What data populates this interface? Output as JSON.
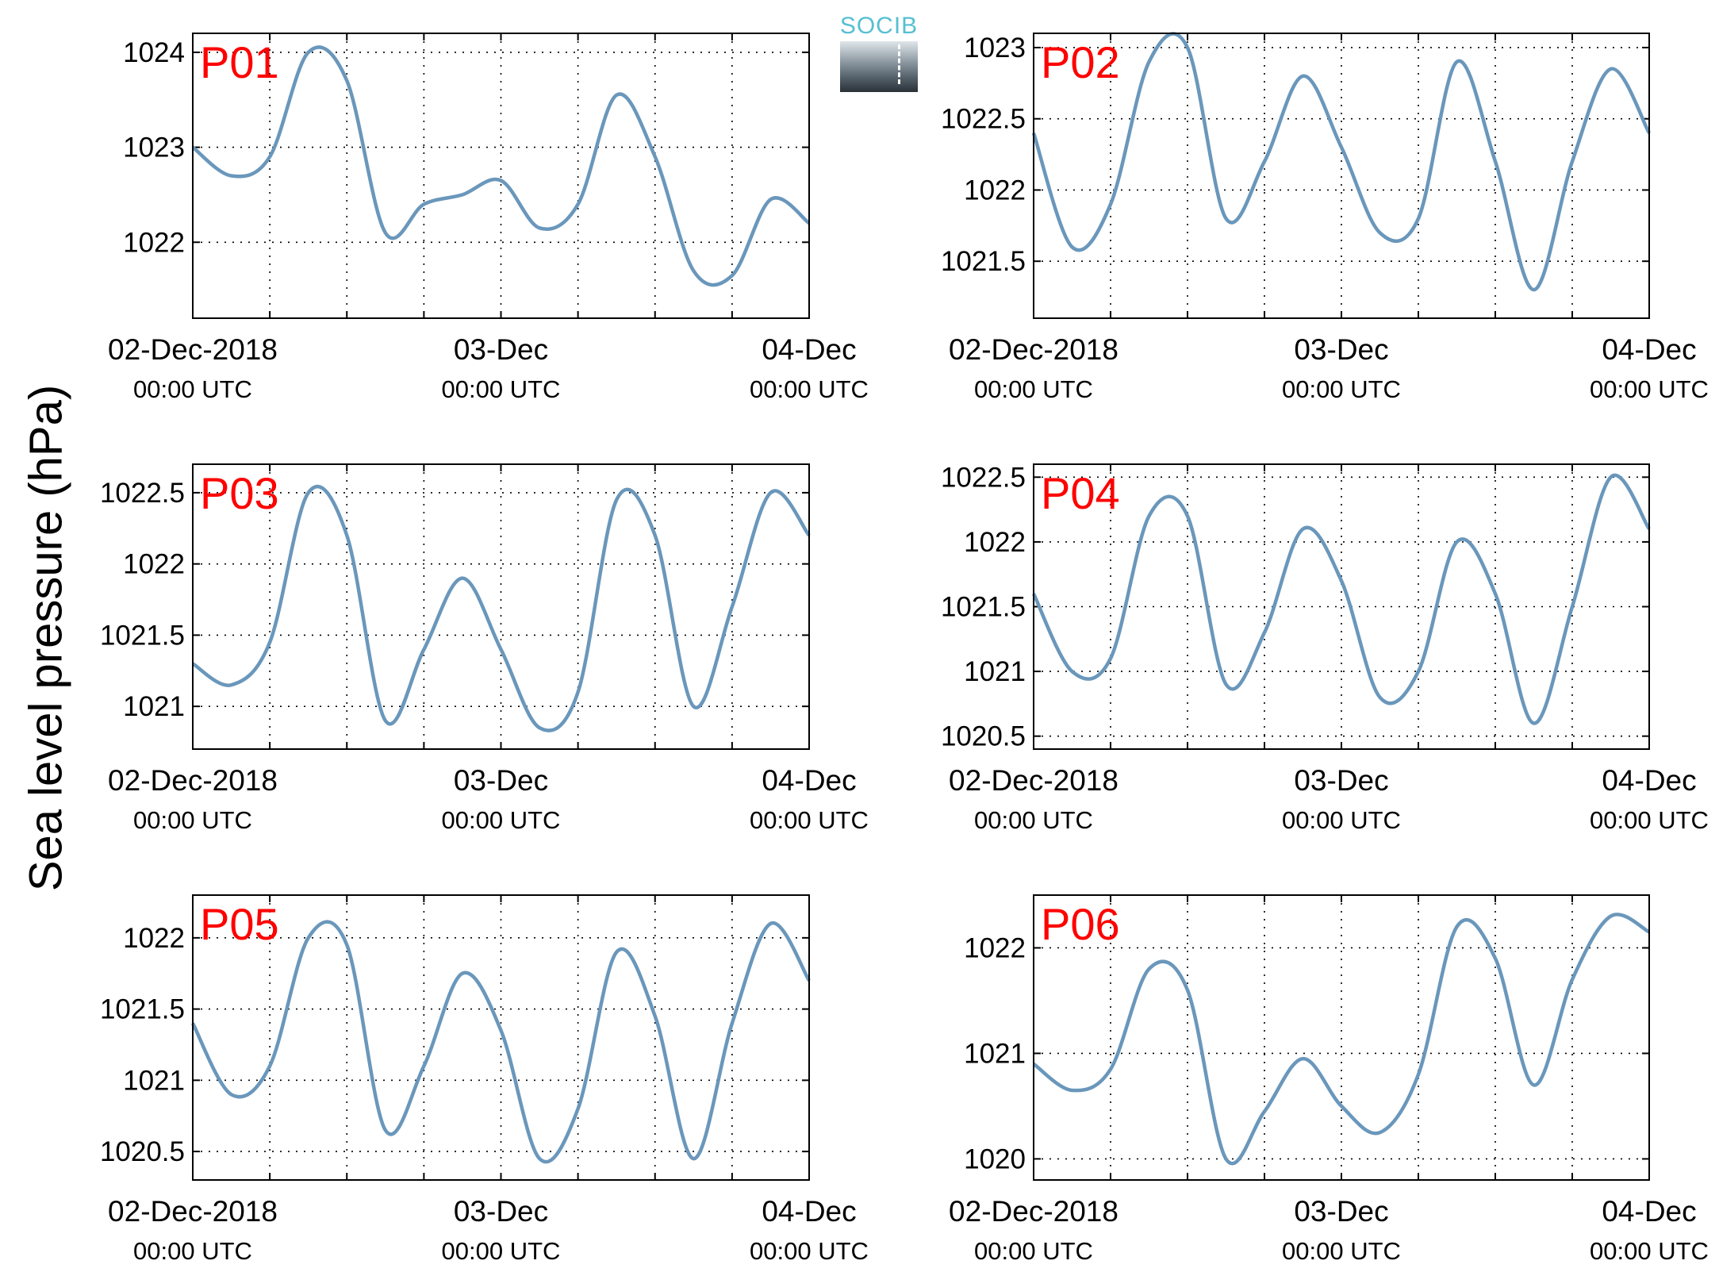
{
  "y_axis_label": "Sea level pressure (hPa)",
  "logo_text": "SOCIB",
  "chart_data": [
    {
      "type": "line",
      "label": "P01",
      "x": [
        "02-Dec-2018 00:00 UTC",
        "02-Dec-2018 03:00 UTC",
        "02-Dec-2018 06:00 UTC",
        "02-Dec-2018 09:00 UTC",
        "02-Dec-2018 12:00 UTC",
        "02-Dec-2018 15:00 UTC",
        "02-Dec-2018 18:00 UTC",
        "02-Dec-2018 21:00 UTC",
        "03-Dec-2018 00:00 UTC",
        "03-Dec-2018 03:00 UTC",
        "03-Dec-2018 06:00 UTC",
        "03-Dec-2018 09:00 UTC",
        "03-Dec-2018 12:00 UTC",
        "03-Dec-2018 15:00 UTC",
        "03-Dec-2018 18:00 UTC",
        "03-Dec-2018 21:00 UTC",
        "04-Dec-2018 00:00 UTC"
      ],
      "y": [
        1023.0,
        1022.7,
        1022.9,
        1024.0,
        1023.7,
        1022.1,
        1022.4,
        1022.5,
        1022.65,
        1022.15,
        1022.4,
        1023.55,
        1022.9,
        1021.7,
        1021.65,
        1022.45,
        1022.2
      ],
      "xlim": [
        "02-Dec-2018 00:00 UTC",
        "04-Dec-2018 00:00 UTC"
      ],
      "ylim": [
        1021.2,
        1024.2
      ],
      "yticks": [
        1022,
        1023,
        1024
      ],
      "xtick_labels": [
        {
          "date": "02-Dec-2018",
          "time": "00:00 UTC"
        },
        {
          "date": "03-Dec",
          "time": "00:00 UTC"
        },
        {
          "date": "04-Dec",
          "time": "00:00 UTC"
        }
      ],
      "grid": true,
      "color": "#6a97bb"
    },
    {
      "type": "line",
      "label": "P02",
      "x": [
        "02-Dec-2018 00:00 UTC",
        "02-Dec-2018 03:00 UTC",
        "02-Dec-2018 06:00 UTC",
        "02-Dec-2018 09:00 UTC",
        "02-Dec-2018 12:00 UTC",
        "02-Dec-2018 15:00 UTC",
        "02-Dec-2018 18:00 UTC",
        "02-Dec-2018 21:00 UTC",
        "03-Dec-2018 00:00 UTC",
        "03-Dec-2018 03:00 UTC",
        "03-Dec-2018 06:00 UTC",
        "03-Dec-2018 09:00 UTC",
        "03-Dec-2018 12:00 UTC",
        "03-Dec-2018 15:00 UTC",
        "03-Dec-2018 18:00 UTC",
        "03-Dec-2018 21:00 UTC",
        "04-Dec-2018 00:00 UTC"
      ],
      "y": [
        1022.4,
        1021.6,
        1021.9,
        1022.9,
        1023.0,
        1021.8,
        1022.2,
        1022.8,
        1022.3,
        1021.7,
        1021.8,
        1022.9,
        1022.2,
        1021.3,
        1022.2,
        1022.85,
        1022.4
      ],
      "xlim": [
        "02-Dec-2018 00:00 UTC",
        "04-Dec-2018 00:00 UTC"
      ],
      "ylim": [
        1021.1,
        1023.1
      ],
      "yticks": [
        1021.5,
        1022,
        1022.5,
        1023
      ],
      "xtick_labels": [
        {
          "date": "02-Dec-2018",
          "time": "00:00 UTC"
        },
        {
          "date": "03-Dec",
          "time": "00:00 UTC"
        },
        {
          "date": "04-Dec",
          "time": "00:00 UTC"
        }
      ],
      "grid": true,
      "color": "#6a97bb"
    },
    {
      "type": "line",
      "label": "P03",
      "x": [
        "02-Dec-2018 00:00 UTC",
        "02-Dec-2018 03:00 UTC",
        "02-Dec-2018 06:00 UTC",
        "02-Dec-2018 09:00 UTC",
        "02-Dec-2018 12:00 UTC",
        "02-Dec-2018 15:00 UTC",
        "02-Dec-2018 18:00 UTC",
        "02-Dec-2018 21:00 UTC",
        "03-Dec-2018 00:00 UTC",
        "03-Dec-2018 03:00 UTC",
        "03-Dec-2018 06:00 UTC",
        "03-Dec-2018 09:00 UTC",
        "03-Dec-2018 12:00 UTC",
        "03-Dec-2018 15:00 UTC",
        "03-Dec-2018 18:00 UTC",
        "03-Dec-2018 21:00 UTC",
        "04-Dec-2018 00:00 UTC"
      ],
      "y": [
        1021.3,
        1021.15,
        1021.45,
        1022.5,
        1022.2,
        1020.9,
        1021.4,
        1021.9,
        1021.4,
        1020.85,
        1021.1,
        1022.45,
        1022.2,
        1021.0,
        1021.7,
        1022.5,
        1022.2
      ],
      "xlim": [
        "02-Dec-2018 00:00 UTC",
        "04-Dec-2018 00:00 UTC"
      ],
      "ylim": [
        1020.7,
        1022.7
      ],
      "yticks": [
        1021,
        1021.5,
        1022,
        1022.5
      ],
      "xtick_labels": [
        {
          "date": "02-Dec-2018",
          "time": "00:00 UTC"
        },
        {
          "date": "03-Dec",
          "time": "00:00 UTC"
        },
        {
          "date": "04-Dec",
          "time": "00:00 UTC"
        }
      ],
      "grid": true,
      "color": "#6a97bb"
    },
    {
      "type": "line",
      "label": "P04",
      "x": [
        "02-Dec-2018 00:00 UTC",
        "02-Dec-2018 03:00 UTC",
        "02-Dec-2018 06:00 UTC",
        "02-Dec-2018 09:00 UTC",
        "02-Dec-2018 12:00 UTC",
        "02-Dec-2018 15:00 UTC",
        "02-Dec-2018 18:00 UTC",
        "02-Dec-2018 21:00 UTC",
        "03-Dec-2018 00:00 UTC",
        "03-Dec-2018 03:00 UTC",
        "03-Dec-2018 06:00 UTC",
        "03-Dec-2018 09:00 UTC",
        "03-Dec-2018 12:00 UTC",
        "03-Dec-2018 15:00 UTC",
        "03-Dec-2018 18:00 UTC",
        "03-Dec-2018 21:00 UTC",
        "04-Dec-2018 00:00 UTC"
      ],
      "y": [
        1021.6,
        1021.0,
        1021.1,
        1022.2,
        1022.2,
        1020.9,
        1021.3,
        1022.1,
        1021.7,
        1020.8,
        1021.0,
        1022.0,
        1021.6,
        1020.6,
        1021.5,
        1022.5,
        1022.1
      ],
      "xlim": [
        "02-Dec-2018 00:00 UTC",
        "04-Dec-2018 00:00 UTC"
      ],
      "ylim": [
        1020.4,
        1022.6
      ],
      "yticks": [
        1020.5,
        1021,
        1021.5,
        1022,
        1022.5
      ],
      "xtick_labels": [
        {
          "date": "02-Dec-2018",
          "time": "00:00 UTC"
        },
        {
          "date": "03-Dec",
          "time": "00:00 UTC"
        },
        {
          "date": "04-Dec",
          "time": "00:00 UTC"
        }
      ],
      "grid": true,
      "color": "#6a97bb"
    },
    {
      "type": "line",
      "label": "P05",
      "x": [
        "02-Dec-2018 00:00 UTC",
        "02-Dec-2018 03:00 UTC",
        "02-Dec-2018 06:00 UTC",
        "02-Dec-2018 09:00 UTC",
        "02-Dec-2018 12:00 UTC",
        "02-Dec-2018 15:00 UTC",
        "02-Dec-2018 18:00 UTC",
        "02-Dec-2018 21:00 UTC",
        "03-Dec-2018 00:00 UTC",
        "03-Dec-2018 03:00 UTC",
        "03-Dec-2018 06:00 UTC",
        "03-Dec-2018 09:00 UTC",
        "03-Dec-2018 12:00 UTC",
        "03-Dec-2018 15:00 UTC",
        "03-Dec-2018 18:00 UTC",
        "03-Dec-2018 21:00 UTC",
        "04-Dec-2018 00:00 UTC"
      ],
      "y": [
        1021.4,
        1020.9,
        1021.1,
        1022.0,
        1021.95,
        1020.65,
        1021.1,
        1021.75,
        1021.35,
        1020.45,
        1020.8,
        1021.9,
        1021.45,
        1020.45,
        1021.4,
        1022.1,
        1021.7
      ],
      "xlim": [
        "02-Dec-2018 00:00 UTC",
        "04-Dec-2018 00:00 UTC"
      ],
      "ylim": [
        1020.3,
        1022.3
      ],
      "yticks": [
        1020.5,
        1021,
        1021.5,
        1022
      ],
      "xtick_labels": [
        {
          "date": "02-Dec-2018",
          "time": "00:00 UTC"
        },
        {
          "date": "03-Dec",
          "time": "00:00 UTC"
        },
        {
          "date": "04-Dec",
          "time": "00:00 UTC"
        }
      ],
      "grid": true,
      "color": "#6a97bb"
    },
    {
      "type": "line",
      "label": "P06",
      "x": [
        "02-Dec-2018 00:00 UTC",
        "02-Dec-2018 03:00 UTC",
        "02-Dec-2018 06:00 UTC",
        "02-Dec-2018 09:00 UTC",
        "02-Dec-2018 12:00 UTC",
        "02-Dec-2018 15:00 UTC",
        "02-Dec-2018 18:00 UTC",
        "02-Dec-2018 21:00 UTC",
        "03-Dec-2018 00:00 UTC",
        "03-Dec-2018 03:00 UTC",
        "03-Dec-2018 06:00 UTC",
        "03-Dec-2018 09:00 UTC",
        "03-Dec-2018 12:00 UTC",
        "03-Dec-2018 15:00 UTC",
        "03-Dec-2018 18:00 UTC",
        "03-Dec-2018 21:00 UTC",
        "04-Dec-2018 00:00 UTC"
      ],
      "y": [
        1020.9,
        1020.65,
        1020.85,
        1021.8,
        1021.6,
        1020.0,
        1020.45,
        1020.95,
        1020.5,
        1020.25,
        1020.8,
        1022.2,
        1021.9,
        1020.7,
        1021.7,
        1022.3,
        1022.15
      ],
      "xlim": [
        "02-Dec-2018 00:00 UTC",
        "04-Dec-2018 00:00 UTC"
      ],
      "ylim": [
        1019.8,
        1022.5
      ],
      "yticks": [
        1020,
        1021,
        1022
      ],
      "xtick_labels": [
        {
          "date": "02-Dec-2018",
          "time": "00:00 UTC"
        },
        {
          "date": "03-Dec",
          "time": "00:00 UTC"
        },
        {
          "date": "04-Dec",
          "time": "00:00 UTC"
        }
      ],
      "grid": true,
      "color": "#6a97bb"
    }
  ]
}
